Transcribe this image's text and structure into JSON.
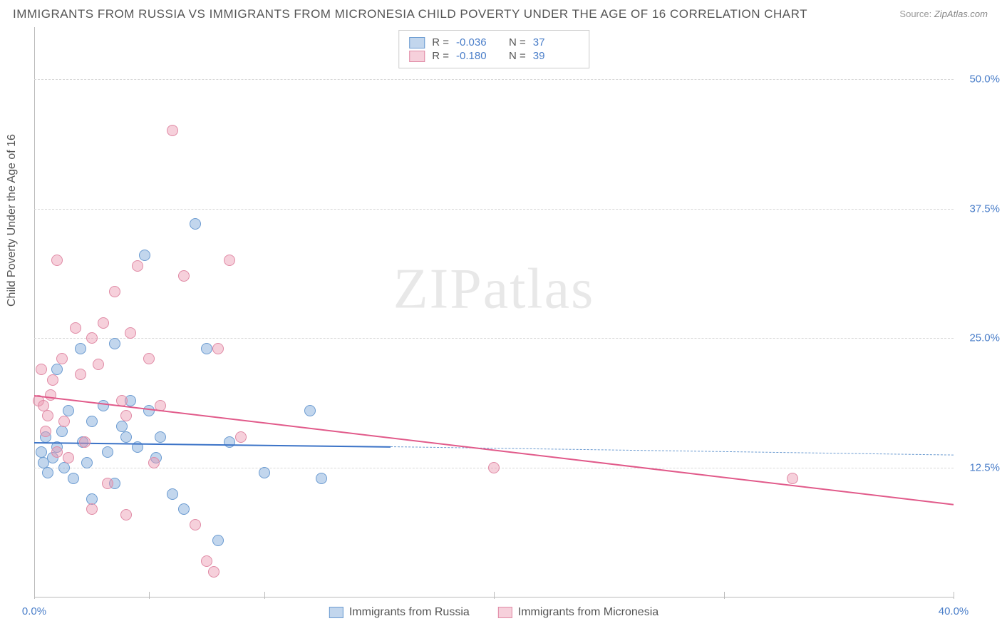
{
  "title": "IMMIGRANTS FROM RUSSIA VS IMMIGRANTS FROM MICRONESIA CHILD POVERTY UNDER THE AGE OF 16 CORRELATION CHART",
  "source_label": "Source:",
  "source_value": "ZipAtlas.com",
  "y_axis_label": "Child Poverty Under the Age of 16",
  "watermark_a": "ZIP",
  "watermark_b": "atlas",
  "chart": {
    "type": "scatter",
    "background_color": "#ffffff",
    "grid_color": "#d8d8d8",
    "axis_color": "#bbbbbb",
    "xlim": [
      0,
      40
    ],
    "ylim": [
      0,
      55
    ],
    "yticks": [
      12.5,
      25.0,
      37.5,
      50.0
    ],
    "ytick_labels": [
      "12.5%",
      "25.0%",
      "37.5%",
      "50.0%"
    ],
    "xticks": [
      0,
      5,
      10,
      20,
      30,
      40
    ],
    "xtick_labels": {
      "0": "0.0%",
      "40": "40.0%"
    },
    "marker_radius": 8,
    "marker_border_width": 1,
    "series": [
      {
        "name": "Immigrants from Russia",
        "fill_color": "rgba(120,165,216,0.45)",
        "border_color": "#6b9bd1",
        "R": "-0.036",
        "N": "37",
        "trend": {
          "x1": 0,
          "y1": 15.0,
          "x2": 15.5,
          "y2": 14.6,
          "color": "#3b73c7",
          "width": 2,
          "dash": false
        },
        "trend_ext": {
          "x1": 15.5,
          "y1": 14.6,
          "x2": 40,
          "y2": 13.8,
          "color": "#6b9bd1",
          "width": 1.5,
          "dash": true
        },
        "points": [
          [
            0.3,
            14.0
          ],
          [
            0.4,
            13.0
          ],
          [
            0.5,
            15.5
          ],
          [
            0.6,
            12.0
          ],
          [
            0.8,
            13.5
          ],
          [
            1.0,
            22.0
          ],
          [
            1.0,
            14.5
          ],
          [
            1.2,
            16.0
          ],
          [
            1.3,
            12.5
          ],
          [
            1.5,
            18.0
          ],
          [
            1.7,
            11.5
          ],
          [
            2.0,
            24.0
          ],
          [
            2.1,
            15.0
          ],
          [
            2.3,
            13.0
          ],
          [
            2.5,
            17.0
          ],
          [
            2.5,
            9.5
          ],
          [
            3.0,
            18.5
          ],
          [
            3.2,
            14.0
          ],
          [
            3.5,
            24.5
          ],
          [
            3.5,
            11.0
          ],
          [
            3.8,
            16.5
          ],
          [
            4.0,
            15.5
          ],
          [
            4.2,
            19.0
          ],
          [
            4.5,
            14.5
          ],
          [
            4.8,
            33.0
          ],
          [
            5.0,
            18.0
          ],
          [
            5.3,
            13.5
          ],
          [
            5.5,
            15.5
          ],
          [
            6.0,
            10.0
          ],
          [
            6.5,
            8.5
          ],
          [
            7.0,
            36.0
          ],
          [
            7.5,
            24.0
          ],
          [
            8.0,
            5.5
          ],
          [
            8.5,
            15.0
          ],
          [
            10.0,
            12.0
          ],
          [
            12.0,
            18.0
          ],
          [
            12.5,
            11.5
          ]
        ]
      },
      {
        "name": "Immigrants from Micronesia",
        "fill_color": "rgba(235,150,175,0.45)",
        "border_color": "#e08aa5",
        "R": "-0.180",
        "N": "39",
        "trend": {
          "x1": 0,
          "y1": 19.5,
          "x2": 40,
          "y2": 9.0,
          "color": "#e15a8a",
          "width": 2,
          "dash": false
        },
        "points": [
          [
            0.2,
            19.0
          ],
          [
            0.3,
            22.0
          ],
          [
            0.4,
            18.5
          ],
          [
            0.5,
            16.0
          ],
          [
            0.6,
            17.5
          ],
          [
            0.7,
            19.5
          ],
          [
            0.8,
            21.0
          ],
          [
            1.0,
            14.0
          ],
          [
            1.0,
            32.5
          ],
          [
            1.2,
            23.0
          ],
          [
            1.3,
            17.0
          ],
          [
            1.5,
            13.5
          ],
          [
            1.8,
            26.0
          ],
          [
            2.0,
            21.5
          ],
          [
            2.2,
            15.0
          ],
          [
            2.5,
            25.0
          ],
          [
            2.5,
            8.5
          ],
          [
            2.8,
            22.5
          ],
          [
            3.0,
            26.5
          ],
          [
            3.2,
            11.0
          ],
          [
            3.5,
            29.5
          ],
          [
            3.8,
            19.0
          ],
          [
            4.0,
            17.5
          ],
          [
            4.0,
            8.0
          ],
          [
            4.5,
            32.0
          ],
          [
            5.0,
            23.0
          ],
          [
            5.2,
            13.0
          ],
          [
            5.5,
            18.5
          ],
          [
            6.0,
            45.0
          ],
          [
            6.5,
            31.0
          ],
          [
            7.0,
            7.0
          ],
          [
            7.5,
            3.5
          ],
          [
            7.8,
            2.5
          ],
          [
            8.0,
            24.0
          ],
          [
            8.5,
            32.5
          ],
          [
            9.0,
            15.5
          ],
          [
            20.0,
            12.5
          ],
          [
            33.0,
            11.5
          ],
          [
            4.2,
            25.5
          ]
        ]
      }
    ]
  },
  "legend_top": {
    "r_label": "R =",
    "n_label": "N ="
  }
}
